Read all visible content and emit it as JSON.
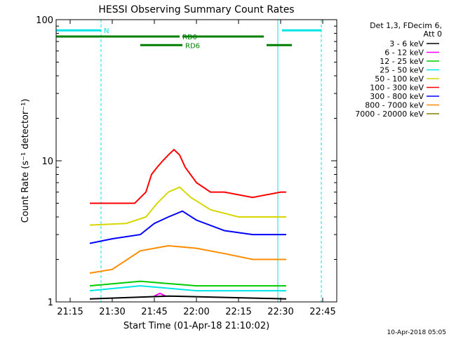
{
  "chart_data": {
    "type": "line",
    "title": "HESSI Observing Summary Count Rates",
    "xlabel": "Start Time (01-Apr-18 21:10:02)",
    "ylabel": "Count Rate (s⁻¹ detector⁻¹)",
    "y_scale": "log",
    "ylim": [
      1,
      100
    ],
    "y_ticks": [
      {
        "value": 1,
        "label": "1"
      },
      {
        "value": 10,
        "label": "10"
      },
      {
        "value": 100,
        "label": "100"
      }
    ],
    "x_range_minutes_from_21_10": [
      0,
      100
    ],
    "x_ticks": [
      {
        "minute": 5,
        "label": "21:15"
      },
      {
        "minute": 20,
        "label": "21:30"
      },
      {
        "minute": 35,
        "label": "21:45"
      },
      {
        "minute": 50,
        "label": "22:00"
      },
      {
        "minute": 65,
        "label": "22:15"
      },
      {
        "minute": 80,
        "label": "22:30"
      },
      {
        "minute": 95,
        "label": "22:45"
      }
    ],
    "legend": {
      "placement": "right",
      "header": [
        "Det 1,3, FDecim 6,",
        "Att 0"
      ],
      "entries": [
        {
          "label": "3 - 6 keV",
          "color": "#000000"
        },
        {
          "label": "6 - 12 keV",
          "color": "#ff00ff"
        },
        {
          "label": "12 - 25 keV",
          "color": "#00cc00"
        },
        {
          "label": "25 - 50 keV",
          "color": "#00e5e5"
        },
        {
          "label": "50 - 100 keV",
          "color": "#d7d700"
        },
        {
          "label": "100 - 300 keV",
          "color": "#ff0000"
        },
        {
          "label": "300 - 800 keV",
          "color": "#0000ff"
        },
        {
          "label": "800 - 7000 keV",
          "color": "#ff8c00"
        },
        {
          "label": "7000 - 20000 keV",
          "color": "#808000"
        }
      ]
    },
    "series": [
      {
        "color": "#ff0000",
        "x": [
          12,
          20,
          28,
          32,
          34,
          36,
          38,
          40,
          42,
          44,
          46,
          50,
          55,
          60,
          70,
          80,
          82
        ],
        "y": [
          5,
          5,
          5,
          6,
          8,
          9,
          10,
          11,
          12,
          11,
          9,
          7,
          6,
          6,
          5.5,
          6,
          6
        ]
      },
      {
        "color": "#d7d700",
        "x": [
          12,
          25,
          32,
          36,
          40,
          44,
          48,
          55,
          65,
          75,
          82
        ],
        "y": [
          3.5,
          3.6,
          4,
          5,
          6,
          6.5,
          5.5,
          4.5,
          4,
          4,
          4
        ]
      },
      {
        "color": "#0000ff",
        "x": [
          12,
          20,
          30,
          35,
          40,
          45,
          50,
          60,
          70,
          80,
          82
        ],
        "y": [
          2.6,
          2.8,
          3,
          3.6,
          4,
          4.4,
          3.8,
          3.2,
          3,
          3,
          3
        ]
      },
      {
        "color": "#ff8c00",
        "x": [
          12,
          20,
          30,
          40,
          50,
          60,
          70,
          82
        ],
        "y": [
          1.6,
          1.7,
          2.3,
          2.5,
          2.4,
          2.2,
          2,
          2
        ]
      },
      {
        "color": "#00cc00",
        "x": [
          12,
          30,
          50,
          82
        ],
        "y": [
          1.3,
          1.4,
          1.3,
          1.3
        ]
      },
      {
        "color": "#00e5e5",
        "x": [
          12,
          30,
          50,
          82
        ],
        "y": [
          1.2,
          1.3,
          1.2,
          1.2
        ]
      },
      {
        "color": "#ff00ff",
        "x": [
          35,
          37,
          39
        ],
        "y": [
          1.1,
          1.15,
          1.1
        ]
      },
      {
        "color": "#000000",
        "x": [
          12,
          40,
          82
        ],
        "y": [
          1.05,
          1.1,
          1.05
        ]
      }
    ],
    "annotations": [
      {
        "text": "N",
        "color": "#00e5e5",
        "y": 84,
        "segments": [
          [
            0,
            16
          ],
          [
            80.5,
            94.5
          ]
        ]
      },
      {
        "text": "RD0",
        "color": "#007f00",
        "y": 76,
        "segments": [
          [
            0,
            44
          ],
          [
            45,
            74
          ]
        ]
      },
      {
        "text": "RD6",
        "color": "#007f00",
        "y": 66,
        "segments": [
          [
            30,
            45
          ],
          [
            75,
            84
          ]
        ]
      }
    ],
    "vlines_dashed_cyan": [
      16,
      94.5
    ],
    "vline_solid_cyan": 79
  },
  "footer_timestamp": "10-Apr-2018 05:05"
}
